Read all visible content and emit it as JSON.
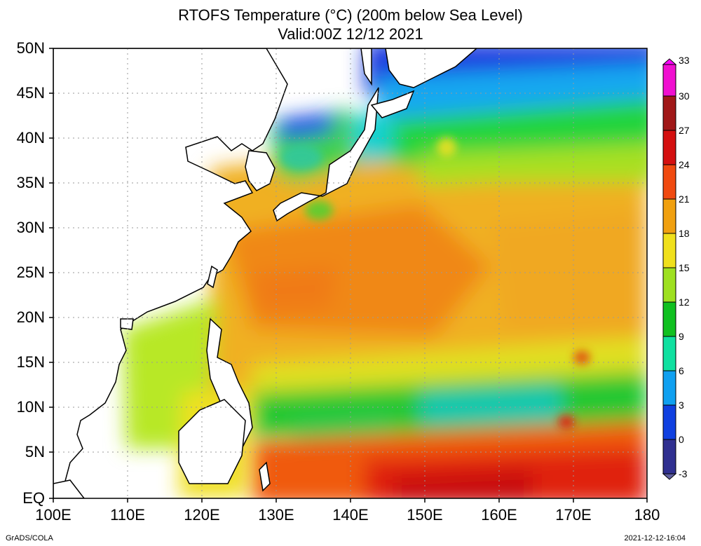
{
  "title": {
    "line1": "RTOFS Temperature (°C) (200m below Sea Level)",
    "line2": "Valid:00Z 12/12 2021"
  },
  "axes": {
    "lat_labels": [
      "50N",
      "45N",
      "40N",
      "35N",
      "30N",
      "25N",
      "20N",
      "15N",
      "10N",
      "5N",
      "EQ"
    ],
    "lon_labels": [
      "100E",
      "110E",
      "120E",
      "130E",
      "140E",
      "150E",
      "160E",
      "170E",
      "180"
    ],
    "lat_range": [
      0,
      50
    ],
    "lon_range": [
      100,
      180
    ]
  },
  "colorbar": {
    "labels": [
      "33",
      "30",
      "27",
      "24",
      "21",
      "18",
      "15",
      "12",
      "9",
      "6",
      "3",
      "0",
      "-3"
    ],
    "colors": [
      "#ff00ff",
      "#cc2a7a",
      "#a01818",
      "#d41010",
      "#f03a10",
      "#f0a010",
      "#f0e01c",
      "#9ee020",
      "#10c020",
      "#10e0a0",
      "#10a0f0",
      "#1040e0",
      "#303090"
    ]
  },
  "credits": {
    "left": "GrADS/COLA",
    "right": "2021-12-12-16:04"
  },
  "chart_data": {
    "type": "heatmap",
    "title": "RTOFS Temperature (°C) (200m below Sea Level)",
    "subtitle": "Valid:00Z 12/12 2021",
    "variable": "Ocean temperature at 200m depth",
    "units": "°C",
    "x_range": [
      100,
      180
    ],
    "y_range": [
      0,
      50
    ],
    "value_range": [
      -3,
      33
    ],
    "regions": [
      {
        "name": "Northwest Pacific north of 45N",
        "approx_temp": 2
      },
      {
        "name": "Sea of Japan / Kuroshio extension 38-45N",
        "approx_temp": 9
      },
      {
        "name": "Subtropical gyre 15-35N",
        "approx_temp": 19
      },
      {
        "name": "South China Sea",
        "approx_temp": 14
      },
      {
        "name": "Tropical band 5-12N",
        "approx_temp": 12
      },
      {
        "name": "Equatorial band 0-5N",
        "approx_temp": 23
      }
    ]
  }
}
